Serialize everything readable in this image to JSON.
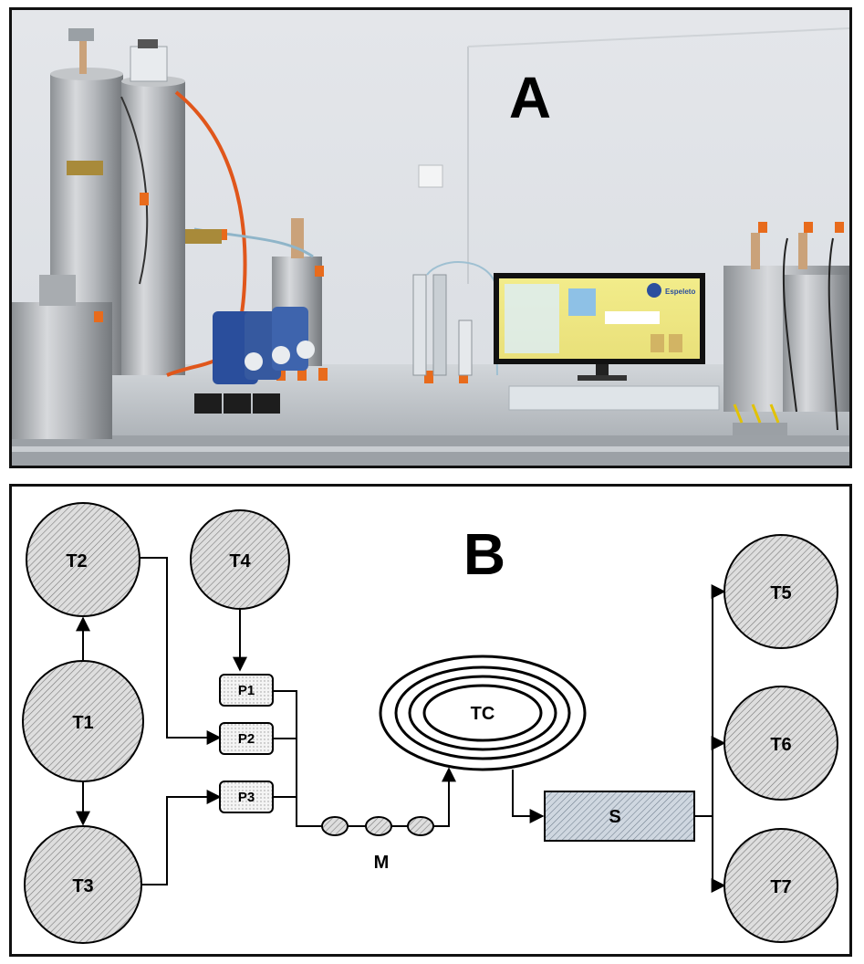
{
  "panel_a": {
    "label": "A",
    "monitor_brand": "Espeleto"
  },
  "panel_b": {
    "label": "B",
    "tanks": {
      "T1": "T1",
      "T2": "T2",
      "T3": "T3",
      "T4": "T4",
      "T5": "T5",
      "T6": "T6",
      "T7": "T7"
    },
    "pumps": {
      "P1": "P1",
      "P2": "P2",
      "P3": "P3"
    },
    "mixer_label": "M",
    "coil_label": "TC",
    "separator_label": "S"
  },
  "colors": {
    "tank_fill": "#d4d4d4",
    "separator_fill": "#c5ced8",
    "pump_fill": "#f2f2f2",
    "stroke": "#000000"
  }
}
